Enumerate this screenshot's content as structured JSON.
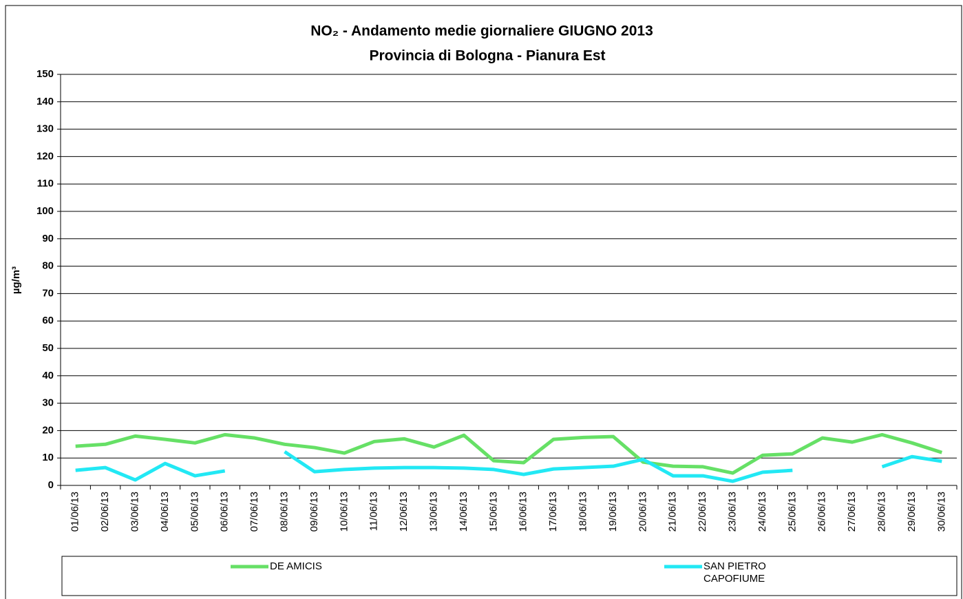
{
  "chart_data": {
    "type": "line",
    "title": "NO₂ - Andamento medie giornaliere GIUGNO 2013",
    "subtitle": "Provincia di Bologna - Pianura Est",
    "y_label": "µg/m³",
    "categories": [
      "01/06/13",
      "02/06/13",
      "03/06/13",
      "04/06/13",
      "05/06/13",
      "06/06/13",
      "07/06/13",
      "08/06/13",
      "09/06/13",
      "10/06/13",
      "11/06/13",
      "12/06/13",
      "13/06/13",
      "14/06/13",
      "15/06/13",
      "16/06/13",
      "17/06/13",
      "18/06/13",
      "19/06/13",
      "20/06/13",
      "21/06/13",
      "22/06/13",
      "23/06/13",
      "24/06/13",
      "25/06/13",
      "26/06/13",
      "27/06/13",
      "28/06/13",
      "29/06/13",
      "30/06/13"
    ],
    "series": [
      {
        "name": "DE AMICIS",
        "color": "#66e066",
        "values": [
          14.3,
          15,
          18,
          16.8,
          15.5,
          18.5,
          17.3,
          15,
          13.8,
          11.8,
          16,
          17,
          14,
          18.3,
          9,
          8.3,
          16.8,
          17.5,
          17.8,
          8.5,
          7,
          6.8,
          4.5,
          11,
          11.5,
          17.3,
          15.8,
          18.5,
          15.5,
          12
        ]
      },
      {
        "name": "SAN PIETRO CAPOFIUME",
        "color": "#22e8f4",
        "values": [
          5.5,
          6.5,
          2,
          8,
          3.5,
          5.3,
          null,
          12.3,
          5,
          5.8,
          6.3,
          6.5,
          6.5,
          6.3,
          5.8,
          4,
          6,
          6.5,
          7,
          9.5,
          3.5,
          3.5,
          1.5,
          4.8,
          5.5,
          null,
          null,
          6.8,
          10.5,
          8.8
        ]
      }
    ],
    "ylim": [
      0,
      150
    ],
    "yticks": [
      0,
      10,
      20,
      30,
      40,
      50,
      60,
      70,
      80,
      90,
      100,
      110,
      120,
      130,
      140,
      150
    ],
    "grid": true,
    "legend": "bottom"
  }
}
